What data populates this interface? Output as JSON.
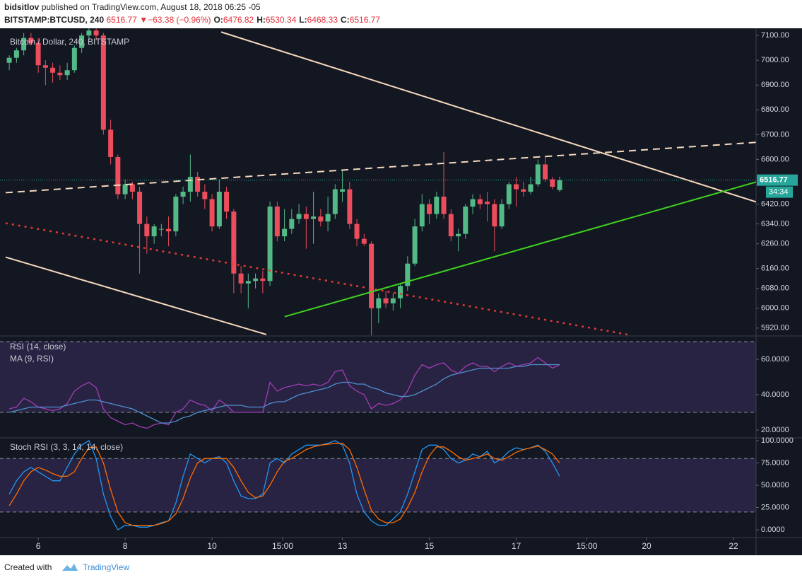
{
  "header": {
    "author": "bidsitlov",
    "published": "published on TradingView.com, August 18, 2018 06:25 -05",
    "symbol": "BITSTAMP:BTCUSD, 240",
    "last": "6516.77",
    "arrow": "▼",
    "change": "−63.38 (−0.96%)",
    "ohlc": [
      {
        "label": "O:",
        "value": "6476.82"
      },
      {
        "label": "H:",
        "value": "6530.34"
      },
      {
        "label": "L:",
        "value": "6468.33"
      },
      {
        "label": "C:",
        "value": "6516.77"
      }
    ]
  },
  "footer": {
    "created": "Created with",
    "brand": "TradingView"
  },
  "chart_data": [
    {
      "type": "candlestick",
      "title": "Bitcoin / Dollar, 240, BITSTAMP",
      "up_color": "#53b987",
      "down_color": "#eb4d5c",
      "x": [
        5.333,
        5.5,
        5.667,
        5.833,
        6,
        6.167,
        6.333,
        6.5,
        6.667,
        6.833,
        7,
        7.167,
        7.333,
        7.5,
        7.667,
        7.833,
        8,
        8.167,
        8.333,
        8.5,
        8.667,
        8.833,
        9,
        9.167,
        9.333,
        9.5,
        9.667,
        9.833,
        10,
        10.167,
        10.333,
        10.5,
        10.667,
        10.833,
        11,
        11.167,
        11.333,
        11.5,
        11.667,
        11.833,
        12,
        12.167,
        12.333,
        12.5,
        12.667,
        12.833,
        13,
        13.167,
        13.333,
        13.5,
        13.667,
        13.833,
        14,
        14.167,
        14.333,
        14.5,
        14.667,
        14.833,
        15,
        15.167,
        15.333,
        15.5,
        15.667,
        15.833,
        16,
        16.167,
        16.333,
        16.5,
        16.667,
        16.833,
        17,
        17.167,
        17.333,
        17.5,
        17.667,
        17.833,
        18
      ],
      "open": [
        6990,
        7010,
        7040,
        7090,
        7070,
        6980,
        6970,
        6950,
        6940,
        6960,
        7050,
        7100,
        7120,
        7100,
        6720,
        6610,
        6460,
        6500,
        6470,
        6340,
        6290,
        6320,
        6320,
        6310,
        6450,
        6470,
        6530,
        6470,
        6440,
        6330,
        6470,
        6390,
        6140,
        6100,
        6110,
        6120,
        6110,
        6410,
        6290,
        6320,
        6360,
        6380,
        6360,
        6370,
        6350,
        6380,
        6470,
        6480,
        6340,
        6280,
        6260,
        6000,
        6040,
        6020,
        6040,
        6090,
        6180,
        6330,
        6420,
        6380,
        6450,
        6380,
        6290,
        6300,
        6410,
        6440,
        6430,
        6420,
        6330,
        6420,
        6500,
        6480,
        6470,
        6500,
        6580,
        6520,
        6476.82
      ],
      "high": [
        7020,
        7050,
        7110,
        7110,
        7090,
        7000,
        6990,
        6980,
        6990,
        7060,
        7110,
        7140,
        7130,
        7110,
        6760,
        6620,
        6520,
        6510,
        6490,
        6370,
        6340,
        6340,
        6370,
        6460,
        6490,
        6620,
        6550,
        6500,
        6460,
        6520,
        6490,
        6400,
        6170,
        6140,
        6140,
        6150,
        6430,
        6430,
        6400,
        6400,
        6420,
        6410,
        6470,
        6400,
        6450,
        6500,
        6560,
        6510,
        6360,
        6300,
        6270,
        6060,
        6070,
        6060,
        6100,
        6210,
        6360,
        6460,
        6440,
        6470,
        6630,
        6400,
        6320,
        6420,
        6460,
        6460,
        6470,
        6440,
        6440,
        6510,
        6530,
        6510,
        6530,
        6600,
        6610,
        6530,
        6530.34
      ],
      "low": [
        6960,
        6990,
        7020,
        7060,
        6950,
        6900,
        6910,
        6920,
        6920,
        6950,
        7030,
        7080,
        7080,
        6700,
        6580,
        6440,
        6440,
        6440,
        6140,
        6220,
        6260,
        6290,
        6250,
        6290,
        6420,
        6430,
        6450,
        6400,
        6310,
        6320,
        6360,
        6060,
        6060,
        6000,
        6080,
        6060,
        6090,
        6270,
        6270,
        6300,
        6340,
        6240,
        6260,
        6330,
        6310,
        6360,
        6430,
        6320,
        6250,
        6250,
        5880,
        5940,
        6000,
        5990,
        6000,
        6070,
        6170,
        6310,
        6340,
        6360,
        6360,
        6270,
        6230,
        6280,
        6380,
        6400,
        6350,
        6230,
        6320,
        6400,
        6410,
        6450,
        6460,
        6490,
        6510,
        6480,
        6468.33
      ],
      "close": [
        7010,
        7040,
        7090,
        7070,
        6980,
        6970,
        6950,
        6940,
        6960,
        7050,
        7100,
        7120,
        7100,
        6720,
        6610,
        6460,
        6500,
        6470,
        6340,
        6290,
        6330,
        6320,
        6310,
        6450,
        6470,
        6530,
        6470,
        6440,
        6330,
        6470,
        6390,
        6140,
        6100,
        6110,
        6120,
        6110,
        6410,
        6290,
        6320,
        6360,
        6380,
        6360,
        6370,
        6350,
        6380,
        6480,
        6480,
        6340,
        6280,
        6260,
        6000,
        6040,
        6020,
        6040,
        6090,
        6180,
        6330,
        6420,
        6380,
        6450,
        6380,
        6290,
        6300,
        6410,
        6440,
        6420,
        6420,
        6330,
        6420,
        6500,
        6480,
        6470,
        6500,
        6580,
        6520,
        6490,
        6516.77
      ],
      "xlim": [
        5.12,
        22.52
      ],
      "ylim": [
        5891,
        7129
      ],
      "yticks": [
        {
          "value": 7100,
          "label": "7100.00"
        },
        {
          "value": 7000,
          "label": "7000.00"
        },
        {
          "value": 6900,
          "label": "6900.00"
        },
        {
          "value": 6800,
          "label": "6800.00"
        },
        {
          "value": 6700,
          "label": "6700.00"
        },
        {
          "value": 6600,
          "label": "6600.00"
        },
        {
          "value": 6420,
          "label": "6420.00"
        },
        {
          "value": 6340,
          "label": "6340.00"
        },
        {
          "value": 6260,
          "label": "6260.00"
        },
        {
          "value": 6160,
          "label": "6160.00"
        },
        {
          "value": 6080,
          "label": "6080.00"
        },
        {
          "value": 6000,
          "label": "6000.00"
        },
        {
          "value": 5920,
          "label": "5920.00"
        }
      ],
      "last_price": {
        "value": 6516.77,
        "label": "6516.77",
        "color": "#26a69a"
      },
      "countdown": "34:34",
      "lines": [
        {
          "x": [
            10.21,
            22.52
          ],
          "y": [
            7114,
            6429
          ],
          "color": "#f6d8bd",
          "style": "solid"
        },
        {
          "x": [
            5.25,
            11.25
          ],
          "y": [
            6206,
            5894
          ],
          "color": "#f6d8bd",
          "style": "solid"
        },
        {
          "x": [
            5.25,
            22.52
          ],
          "y": [
            6466,
            6669
          ],
          "color": "#f6d8bd",
          "style": "dashed"
        },
        {
          "x": [
            5.25,
            19.56
          ],
          "y": [
            6343,
            5894
          ],
          "color": "#e53935",
          "style": "dotted"
        },
        {
          "x": [
            11.67,
            22.52
          ],
          "y": [
            5966,
            6509
          ],
          "color": "#3fd11f",
          "style": "solid"
        }
      ]
    },
    {
      "type": "line",
      "series": [
        {
          "name": "RSI (14, close)",
          "color": "#a33cb5",
          "values": [
            32,
            33,
            38,
            36,
            33,
            32,
            31,
            32,
            35,
            42,
            45,
            47,
            44,
            32,
            27,
            25,
            23,
            24,
            22,
            21,
            23,
            24,
            23,
            30,
            32,
            37,
            35,
            34,
            31,
            37,
            34,
            30,
            30,
            30,
            30,
            30,
            47,
            42,
            44,
            45,
            46,
            45,
            46,
            45,
            47,
            53,
            54,
            45,
            42,
            40,
            32,
            35,
            34,
            35,
            37,
            42,
            51,
            57,
            55,
            57,
            58,
            54,
            52,
            56,
            58,
            56,
            56,
            53,
            56,
            58,
            56,
            57,
            58,
            61,
            58,
            55,
            57
          ]
        },
        {
          "name": "MA (9, RSI)",
          "color": "#4f8fd0",
          "values": [
            30,
            31,
            32,
            33,
            33,
            33,
            33,
            33,
            34,
            35,
            36,
            37,
            37,
            36,
            35,
            34,
            33,
            32,
            30,
            28,
            26,
            24,
            24,
            25,
            27,
            28,
            30,
            31,
            32,
            33,
            34,
            34,
            34,
            33,
            33,
            33,
            35,
            36,
            36,
            38,
            40,
            41,
            42,
            43,
            44,
            46,
            47,
            47,
            46,
            46,
            44,
            43,
            41,
            40,
            39,
            39,
            40,
            42,
            44,
            46,
            49,
            51,
            52,
            53,
            54,
            55,
            55,
            55,
            55,
            55,
            56,
            56,
            57,
            57,
            57,
            57,
            57
          ]
        }
      ],
      "bands": [
        70,
        30
      ],
      "band_color": "#7e57c2",
      "ylim": [
        16,
        72.8
      ],
      "yticks": [
        {
          "value": 60,
          "label": "60.0000"
        },
        {
          "value": 40,
          "label": "40.0000"
        },
        {
          "value": 20,
          "label": "20.0000"
        }
      ]
    },
    {
      "type": "line",
      "title": "Stoch RSI (3, 3, 14, 14, close)",
      "series": [
        {
          "color": "#2196f3",
          "values": [
            40,
            55,
            65,
            70,
            65,
            60,
            55,
            55,
            70,
            85,
            95,
            100,
            80,
            40,
            15,
            0,
            5,
            5,
            3,
            3,
            5,
            8,
            10,
            30,
            60,
            85,
            80,
            75,
            80,
            82,
            75,
            55,
            38,
            35,
            35,
            40,
            75,
            80,
            75,
            85,
            90,
            95,
            95,
            95,
            97,
            100,
            95,
            75,
            40,
            20,
            10,
            5,
            5,
            12,
            20,
            40,
            65,
            90,
            95,
            95,
            90,
            80,
            75,
            78,
            85,
            82,
            88,
            75,
            80,
            88,
            92,
            90,
            92,
            95,
            88,
            75,
            60
          ]
        },
        {
          "color": "#ff6d00",
          "values": [
            27,
            40,
            55,
            65,
            70,
            67,
            63,
            60,
            60,
            65,
            80,
            92,
            93,
            75,
            45,
            20,
            8,
            5,
            5,
            5,
            5,
            7,
            10,
            18,
            35,
            58,
            75,
            80,
            80,
            80,
            80,
            70,
            55,
            42,
            36,
            38,
            50,
            65,
            77,
            80,
            85,
            90,
            93,
            95,
            96,
            97,
            97,
            90,
            70,
            45,
            22,
            12,
            8,
            8,
            12,
            25,
            42,
            65,
            83,
            93,
            93,
            88,
            82,
            78,
            80,
            82,
            85,
            80,
            78,
            82,
            87,
            90,
            92,
            94,
            90,
            85,
            75
          ]
        }
      ],
      "bands": [
        80,
        20
      ],
      "band_color": "#7e57c2",
      "ylim": [
        -8.7,
        102.4
      ],
      "yticks": [
        {
          "value": 100,
          "label": "100.0000"
        },
        {
          "value": 75,
          "label": "75.0000"
        },
        {
          "value": 50,
          "label": "50.0000"
        },
        {
          "value": 25,
          "label": "25.0000"
        },
        {
          "value": 0,
          "label": "0.0000"
        }
      ],
      "xticks": [
        6,
        8,
        10,
        {
          "value": 11.625,
          "label": "15:00"
        },
        13,
        15,
        17,
        {
          "value": 18.625,
          "label": "15:00"
        },
        20,
        22
      ]
    }
  ]
}
